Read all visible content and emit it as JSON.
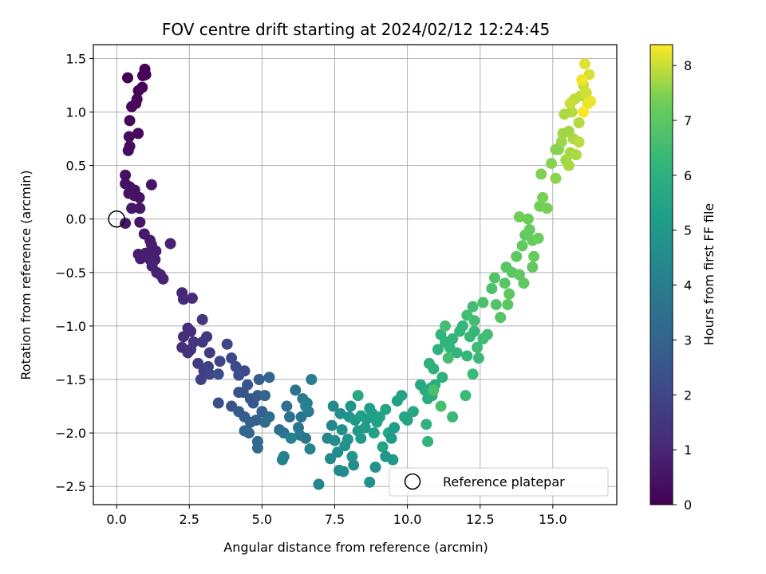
{
  "chart_data": {
    "type": "scatter",
    "title": "FOV centre drift starting at 2024/02/12 12:24:45",
    "xlabel": "Angular distance from reference (arcmin)",
    "ylabel": "Rotation from reference (arcmin)",
    "xlim": [
      -0.8,
      17.2
    ],
    "ylim": [
      -2.67,
      1.63
    ],
    "xticks": [
      0.0,
      2.5,
      5.0,
      7.5,
      10.0,
      12.5,
      15.0
    ],
    "xtick_labels": [
      "0.0",
      "2.5",
      "5.0",
      "7.5",
      "10.0",
      "12.5",
      "15.0"
    ],
    "yticks": [
      -2.5,
      -2.0,
      -1.5,
      -1.0,
      -0.5,
      0.0,
      0.5,
      1.0,
      1.5
    ],
    "ytick_labels": [
      "−2.5",
      "−2.0",
      "−1.5",
      "−1.0",
      "−0.5",
      "0.0",
      "0.5",
      "1.0",
      "1.5"
    ],
    "grid": true,
    "colorbar": {
      "label": "Hours from first FF file",
      "range": [
        0,
        8.38
      ],
      "ticks": [
        0,
        1,
        2,
        3,
        4,
        5,
        6,
        7,
        8
      ],
      "tick_labels": [
        "0",
        "1",
        "2",
        "3",
        "4",
        "5",
        "6",
        "7",
        "8"
      ],
      "colormap": "viridis"
    },
    "legend": {
      "position": "lower-right",
      "label": "Reference platepar"
    },
    "reference_point": {
      "x": 0.0,
      "y": 0.0
    },
    "series_columns": [
      "x",
      "y",
      "hours"
    ],
    "points": [
      [
        0.38,
        1.32,
        0.02
      ],
      [
        0.97,
        1.4,
        0.05
      ],
      [
        0.9,
        1.34,
        0.08
      ],
      [
        1.0,
        1.35,
        0.1
      ],
      [
        0.75,
        1.2,
        0.12
      ],
      [
        0.88,
        1.23,
        0.14
      ],
      [
        0.7,
        1.12,
        0.16
      ],
      [
        0.52,
        1.05,
        0.18
      ],
      [
        0.66,
        1.08,
        0.2
      ],
      [
        0.45,
        0.92,
        0.22
      ],
      [
        0.74,
        0.8,
        0.24
      ],
      [
        0.43,
        0.77,
        0.26
      ],
      [
        0.45,
        0.68,
        0.28
      ],
      [
        0.4,
        0.64,
        0.3
      ],
      [
        0.3,
        0.41,
        0.4
      ],
      [
        0.3,
        0.33,
        0.42
      ],
      [
        0.45,
        0.3,
        0.44
      ],
      [
        0.42,
        0.24,
        0.46
      ],
      [
        0.62,
        0.27,
        0.48
      ],
      [
        0.6,
        0.22,
        0.5
      ],
      [
        0.78,
        0.2,
        0.52
      ],
      [
        1.2,
        0.32,
        0.54
      ],
      [
        0.8,
        0.1,
        0.56
      ],
      [
        0.52,
        0.1,
        0.58
      ],
      [
        0.8,
        -0.03,
        0.6
      ],
      [
        0.3,
        -0.04,
        0.62
      ],
      [
        0.95,
        -0.14,
        0.64
      ],
      [
        1.15,
        -0.2,
        0.66
      ],
      [
        0.75,
        -0.33,
        0.7
      ],
      [
        0.82,
        -0.37,
        0.72
      ],
      [
        1.0,
        -0.32,
        0.74
      ],
      [
        1.2,
        -0.24,
        0.76
      ],
      [
        1.35,
        -0.3,
        0.78
      ],
      [
        1.15,
        -0.38,
        0.8
      ],
      [
        1.32,
        -0.38,
        0.82
      ],
      [
        1.38,
        -0.5,
        0.84
      ],
      [
        1.5,
        -0.52,
        0.86
      ],
      [
        1.6,
        -0.56,
        0.88
      ],
      [
        1.85,
        -0.23,
        0.9
      ],
      [
        1.22,
        -0.44,
        0.92
      ],
      [
        2.25,
        -0.69,
        1.0
      ],
      [
        2.3,
        -0.75,
        1.05
      ],
      [
        2.6,
        -0.74,
        1.1
      ],
      [
        2.45,
        -1.02,
        1.15
      ],
      [
        2.55,
        -1.05,
        1.2
      ],
      [
        2.3,
        -1.1,
        1.25
      ],
      [
        2.25,
        -1.2,
        1.3
      ],
      [
        2.45,
        -1.25,
        1.35
      ],
      [
        2.55,
        -1.22,
        1.4
      ],
      [
        2.65,
        -1.15,
        1.45
      ],
      [
        2.95,
        -0.94,
        1.5
      ],
      [
        2.95,
        -1.15,
        1.55
      ],
      [
        3.1,
        -1.1,
        1.6
      ],
      [
        3.2,
        -1.25,
        1.65
      ],
      [
        2.8,
        -1.35,
        1.7
      ],
      [
        3.0,
        -1.42,
        1.75
      ],
      [
        2.9,
        -1.5,
        1.8
      ],
      [
        3.15,
        -1.38,
        1.85
      ],
      [
        3.2,
        -1.45,
        1.9
      ],
      [
        3.55,
        -1.33,
        1.95
      ],
      [
        3.8,
        -1.17,
        2.0
      ],
      [
        3.95,
        -1.3,
        2.05
      ],
      [
        4.1,
        -1.38,
        2.1
      ],
      [
        4.4,
        -1.42,
        2.15
      ],
      [
        4.2,
        -1.46,
        2.2
      ],
      [
        3.5,
        -1.45,
        2.25
      ],
      [
        3.5,
        -1.72,
        2.3
      ],
      [
        3.95,
        -1.75,
        2.35
      ],
      [
        4.2,
        -1.62,
        2.4
      ],
      [
        4.35,
        -1.62,
        2.45
      ],
      [
        4.5,
        -1.55,
        2.5
      ],
      [
        4.6,
        -1.68,
        2.55
      ],
      [
        4.7,
        -1.72,
        2.6
      ],
      [
        4.85,
        -1.65,
        2.65
      ],
      [
        4.9,
        -1.5,
        2.7
      ],
      [
        4.2,
        -1.8,
        2.75
      ],
      [
        4.4,
        -1.85,
        2.8
      ],
      [
        4.6,
        -1.9,
        2.85
      ],
      [
        4.8,
        -1.88,
        2.9
      ],
      [
        5.0,
        -1.8,
        2.95
      ],
      [
        5.1,
        -1.65,
        3.0
      ],
      [
        5.25,
        -1.48,
        3.05
      ],
      [
        4.4,
        -1.98,
        3.1
      ],
      [
        4.55,
        -2.0,
        3.15
      ],
      [
        4.85,
        -2.08,
        3.2
      ],
      [
        4.85,
        -2.14,
        3.25
      ],
      [
        5.1,
        -1.9,
        3.3
      ],
      [
        5.25,
        -1.85,
        3.35
      ],
      [
        5.6,
        -1.97,
        3.4
      ],
      [
        5.85,
        -1.75,
        3.45
      ],
      [
        5.95,
        -1.85,
        3.5
      ],
      [
        5.75,
        -2.0,
        3.55
      ],
      [
        6.15,
        -1.6,
        3.6
      ],
      [
        6.25,
        -1.95,
        3.65
      ],
      [
        6.35,
        -1.85,
        3.7
      ],
      [
        6.5,
        -2.05,
        3.75
      ],
      [
        6.3,
        -2.02,
        3.8
      ],
      [
        6.4,
        -1.68,
        3.85
      ],
      [
        6.55,
        -1.72,
        3.9
      ],
      [
        6.6,
        -1.8,
        3.95
      ],
      [
        6.7,
        -1.5,
        4.0
      ],
      [
        5.75,
        -2.22,
        4.05
      ],
      [
        5.7,
        -2.25,
        4.1
      ],
      [
        6.0,
        -2.05,
        4.15
      ],
      [
        6.5,
        -1.75,
        4.2
      ],
      [
        6.65,
        -2.15,
        4.25
      ],
      [
        6.95,
        -2.48,
        4.3
      ],
      [
        7.25,
        -2.05,
        4.35
      ],
      [
        7.35,
        -2.24,
        4.4
      ],
      [
        7.4,
        -1.93,
        4.45
      ],
      [
        7.45,
        -1.75,
        4.5
      ],
      [
        7.5,
        -2.07,
        4.55
      ],
      [
        7.6,
        -2.18,
        4.6
      ],
      [
        7.7,
        -1.82,
        4.65
      ],
      [
        7.75,
        -1.97,
        4.7
      ],
      [
        7.85,
        -2.12,
        4.75
      ],
      [
        7.95,
        -2.06,
        4.8
      ],
      [
        8.0,
        -1.85,
        4.85
      ],
      [
        8.05,
        -1.75,
        4.9
      ],
      [
        8.1,
        -2.22,
        4.95
      ],
      [
        8.2,
        -1.88,
        5.0
      ],
      [
        8.3,
        -1.98,
        5.05
      ],
      [
        8.4,
        -2.05,
        5.1
      ],
      [
        8.55,
        -1.95,
        5.15
      ],
      [
        8.6,
        -1.87,
        5.2
      ],
      [
        8.7,
        -1.77,
        5.25
      ],
      [
        8.8,
        -1.82,
        5.3
      ],
      [
        8.85,
        -2.0,
        5.35
      ],
      [
        8.95,
        -1.9,
        5.4
      ],
      [
        9.05,
        -1.85,
        5.45
      ],
      [
        9.15,
        -2.13,
        5.5
      ],
      [
        9.25,
        -1.78,
        5.55
      ],
      [
        9.35,
        -2.0,
        5.6
      ],
      [
        7.65,
        -2.35,
        4.45
      ],
      [
        7.8,
        -2.36,
        4.55
      ],
      [
        8.15,
        -2.3,
        4.65
      ],
      [
        8.7,
        -2.46,
        4.75
      ],
      [
        8.9,
        -2.32,
        4.85
      ],
      [
        9.25,
        -2.22,
        4.95
      ],
      [
        9.5,
        -2.25,
        5.05
      ],
      [
        9.45,
        -2.05,
        5.15
      ],
      [
        9.55,
        -1.95,
        5.25
      ],
      [
        9.65,
        -1.7,
        5.35
      ],
      [
        9.8,
        -1.65,
        5.45
      ],
      [
        9.9,
        -1.85,
        5.5
      ],
      [
        10.0,
        -1.88,
        5.55
      ],
      [
        10.2,
        -1.8,
        5.6
      ],
      [
        8.3,
        -1.65,
        5.6
      ],
      [
        8.4,
        -1.84,
        5.3
      ],
      [
        10.45,
        -1.55,
        5.65
      ],
      [
        10.6,
        -1.6,
        5.7
      ],
      [
        10.8,
        -1.58,
        5.75
      ],
      [
        10.7,
        -1.68,
        5.8
      ],
      [
        10.85,
        -1.65,
        5.85
      ],
      [
        10.95,
        -1.55,
        5.9
      ],
      [
        11.2,
        -1.48,
        5.95
      ],
      [
        10.75,
        -1.35,
        6.0
      ],
      [
        10.9,
        -1.4,
        6.0
      ],
      [
        11.05,
        -1.22,
        6.05
      ],
      [
        11.15,
        -1.08,
        6.1
      ],
      [
        11.3,
        -1.15,
        6.1
      ],
      [
        11.45,
        -1.2,
        6.15
      ],
      [
        11.55,
        -1.12,
        6.15
      ],
      [
        11.7,
        -1.25,
        6.2
      ],
      [
        11.8,
        -1.05,
        6.2
      ],
      [
        11.9,
        -1.0,
        6.25
      ],
      [
        12.05,
        -1.28,
        6.25
      ],
      [
        12.15,
        -1.1,
        6.3
      ],
      [
        12.3,
        -1.05,
        6.3
      ],
      [
        12.45,
        -1.3,
        6.35
      ],
      [
        11.55,
        -1.85,
        6.35
      ],
      [
        10.65,
        -1.92,
        6.05
      ],
      [
        10.7,
        -2.08,
        6.1
      ],
      [
        12.0,
        -1.65,
        6.4
      ],
      [
        12.25,
        -1.45,
        6.4
      ],
      [
        12.4,
        -1.2,
        6.45
      ],
      [
        12.6,
        -1.12,
        6.45
      ],
      [
        12.75,
        -1.08,
        6.5
      ],
      [
        12.05,
        -0.9,
        6.5
      ],
      [
        12.25,
        -0.82,
        6.55
      ],
      [
        12.3,
        -0.95,
        6.55
      ],
      [
        11.3,
        -1.0,
        6.6
      ],
      [
        11.4,
        -1.3,
        6.6
      ],
      [
        10.9,
        -1.6,
        6.65
      ],
      [
        11.15,
        -1.75,
        6.65
      ],
      [
        12.6,
        -0.78,
        6.7
      ],
      [
        12.9,
        -0.65,
        6.75
      ],
      [
        13.0,
        -0.55,
        6.8
      ],
      [
        13.05,
        -0.8,
        6.85
      ],
      [
        13.2,
        -0.92,
        6.9
      ],
      [
        13.35,
        -0.6,
        6.9
      ],
      [
        13.4,
        -0.45,
        6.95
      ],
      [
        13.5,
        -0.7,
        7.0
      ],
      [
        13.6,
        -0.5,
        7.0
      ],
      [
        13.75,
        -0.35,
        7.05
      ],
      [
        13.85,
        -0.52,
        7.05
      ],
      [
        13.95,
        -0.25,
        7.1
      ],
      [
        14.05,
        -0.15,
        7.1
      ],
      [
        14.2,
        -0.1,
        7.15
      ],
      [
        14.3,
        -0.2,
        7.2
      ],
      [
        14.35,
        -0.35,
        7.2
      ],
      [
        14.5,
        -0.18,
        7.25
      ],
      [
        13.85,
        0.02,
        7.3
      ],
      [
        14.15,
        0.0,
        7.3
      ],
      [
        14.55,
        0.12,
        7.35
      ],
      [
        14.65,
        0.2,
        7.4
      ],
      [
        14.8,
        0.1,
        7.4
      ],
      [
        14.6,
        0.42,
        7.45
      ],
      [
        14.95,
        0.52,
        7.5
      ],
      [
        14.3,
        -0.45,
        7.1
      ],
      [
        14.0,
        -0.6,
        7.05
      ],
      [
        13.45,
        -0.8,
        6.95
      ],
      [
        15.1,
        0.38,
        7.55
      ],
      [
        15.2,
        0.65,
        7.6
      ],
      [
        15.3,
        0.72,
        7.65
      ],
      [
        15.35,
        0.8,
        7.7
      ],
      [
        15.45,
        0.55,
        7.7
      ],
      [
        15.55,
        0.5,
        7.75
      ],
      [
        15.6,
        0.62,
        7.75
      ],
      [
        15.7,
        0.75,
        7.8
      ],
      [
        15.8,
        0.6,
        7.8
      ],
      [
        15.9,
        0.9,
        7.85
      ],
      [
        15.65,
        1.0,
        7.85
      ],
      [
        15.75,
        1.12,
        7.9
      ],
      [
        15.95,
        1.15,
        7.95
      ],
      [
        16.05,
        1.25,
        8.0
      ],
      [
        16.15,
        1.18,
        8.05
      ],
      [
        16.25,
        1.35,
        8.1
      ],
      [
        16.1,
        1.45,
        8.15
      ],
      [
        16.2,
        1.08,
        8.2
      ],
      [
        16.3,
        1.1,
        8.25
      ],
      [
        15.55,
        0.82,
        7.7
      ],
      [
        15.4,
        0.98,
        7.8
      ],
      [
        15.9,
        0.72,
        7.9
      ],
      [
        15.1,
        0.65,
        7.5
      ],
      [
        15.6,
        1.08,
        8.0
      ],
      [
        16.0,
        1.3,
        8.3
      ],
      [
        16.05,
        1.0,
        8.35
      ]
    ]
  }
}
